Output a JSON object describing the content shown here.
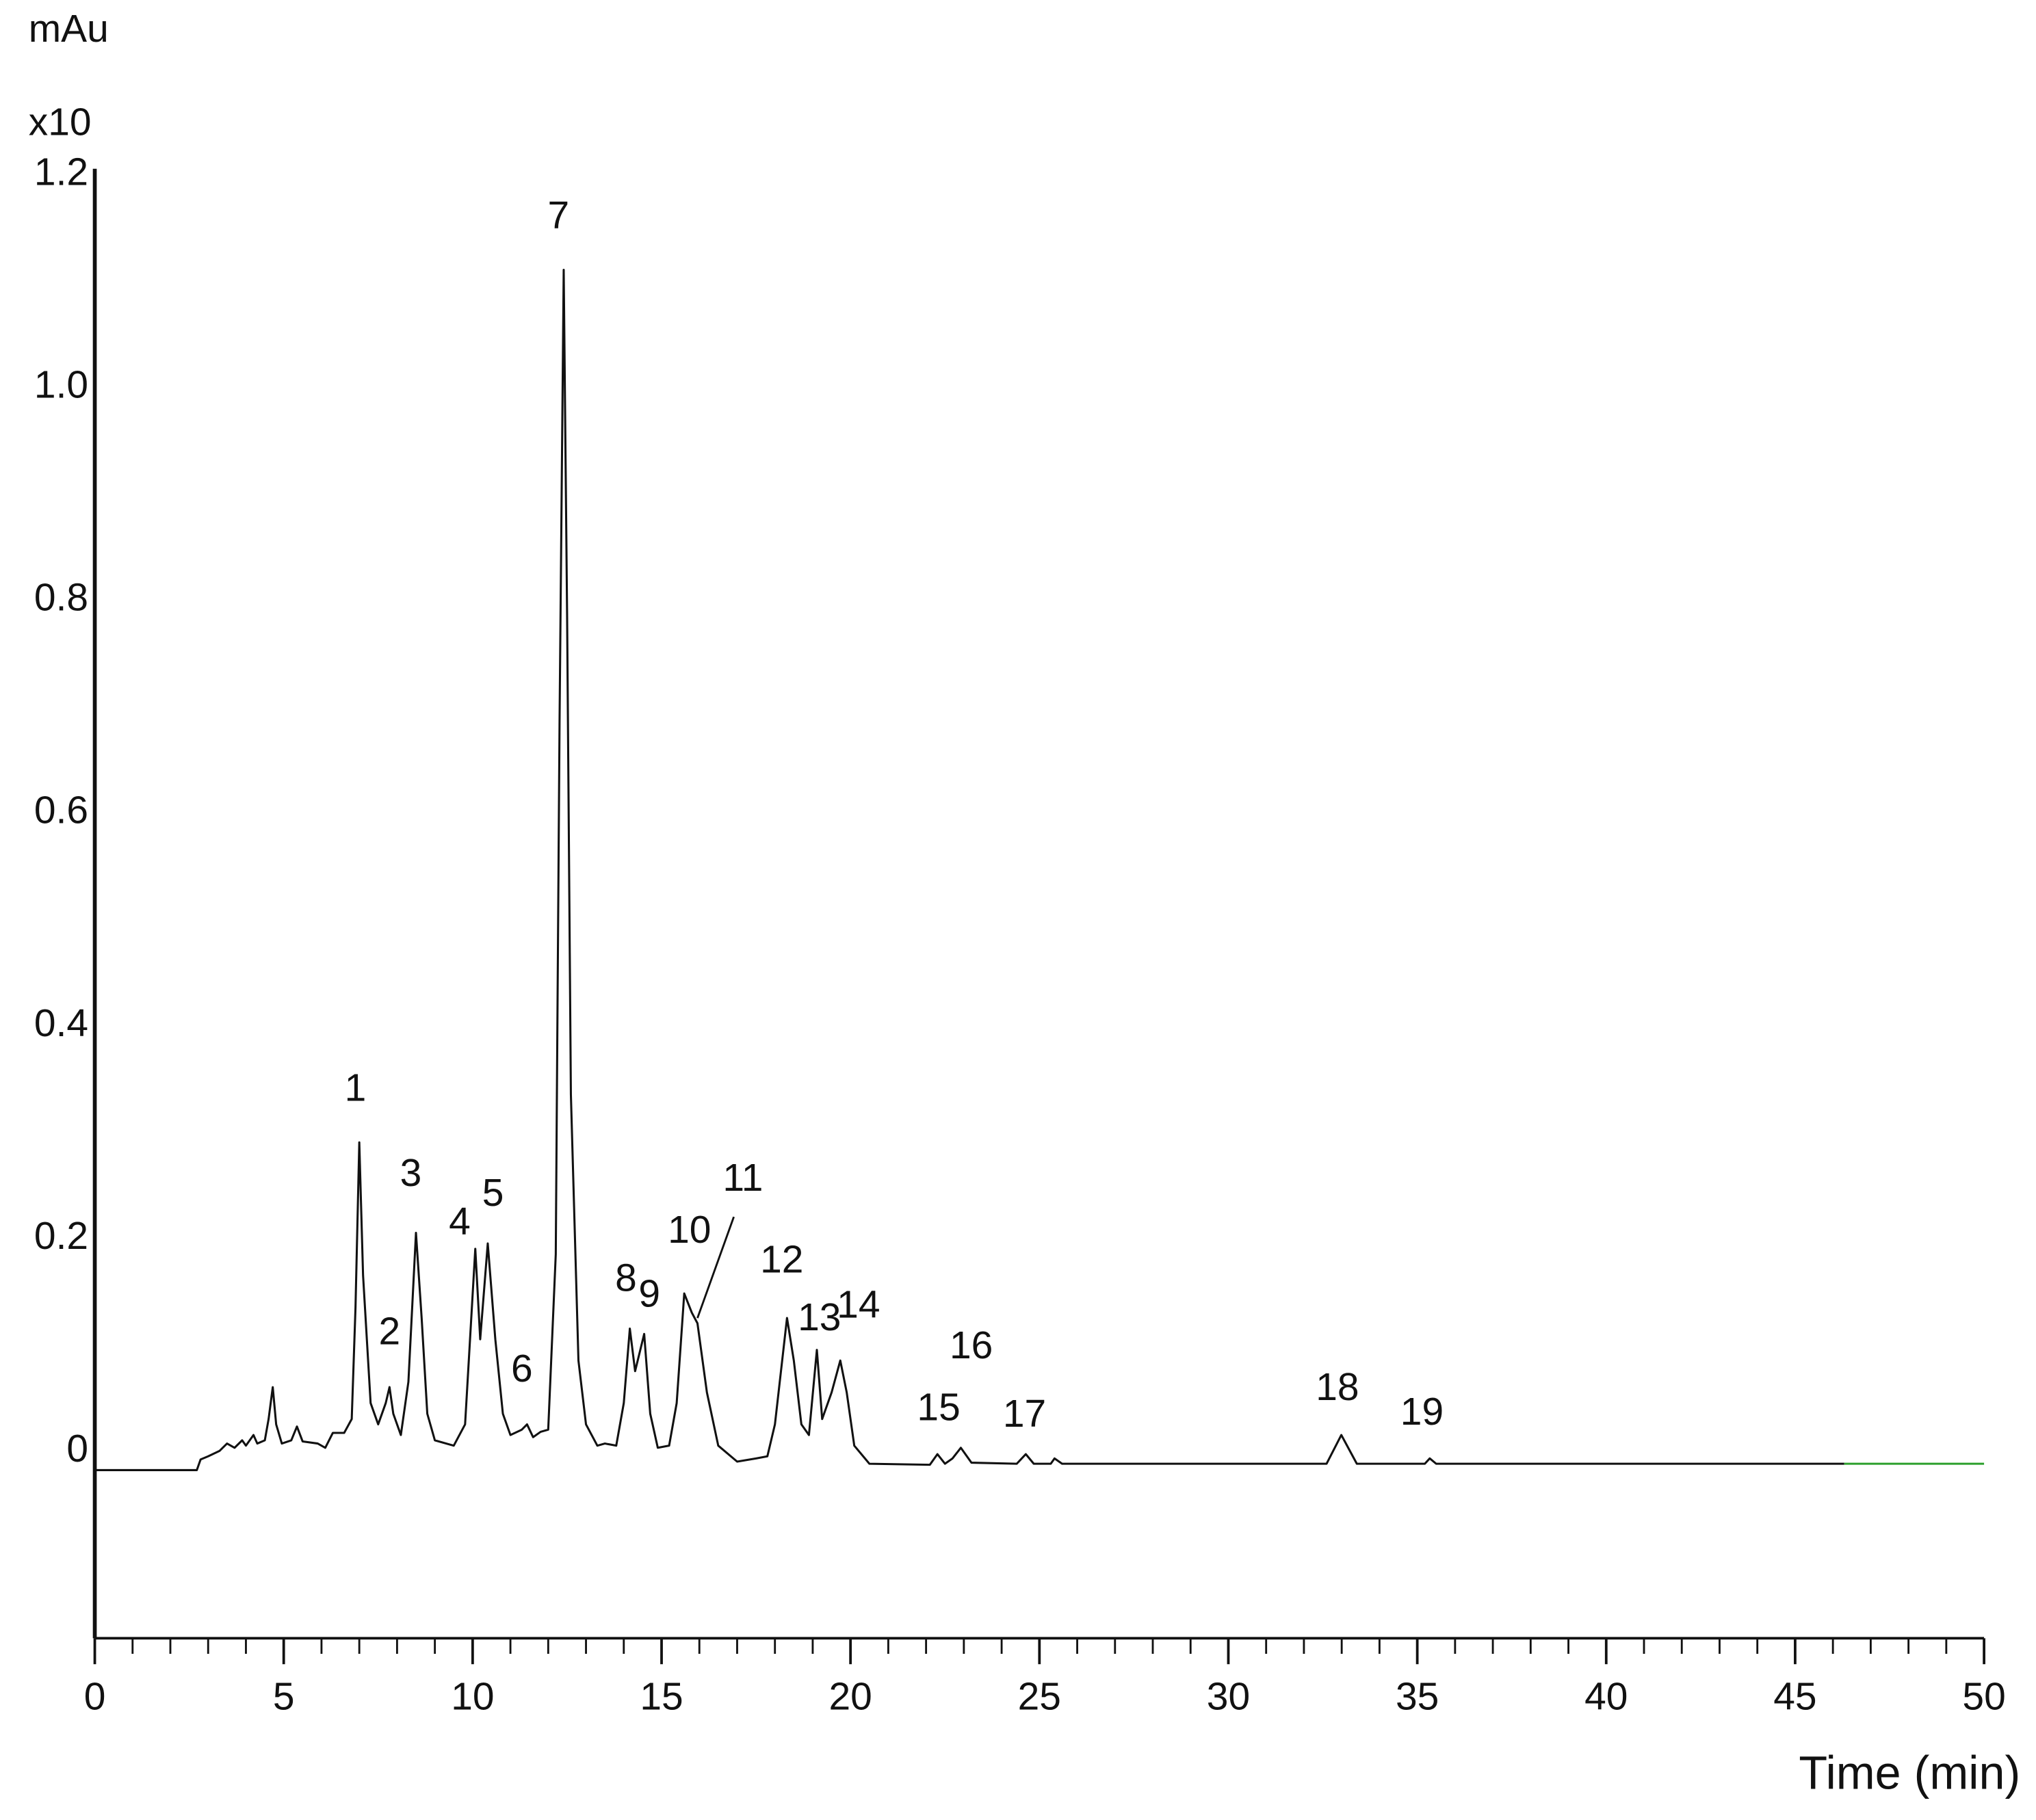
{
  "chart_data": {
    "type": "line",
    "ylabel": "mAu",
    "ylabel_multiplier": "x10",
    "xlabel": "Time (min)",
    "xlim": [
      0,
      50
    ],
    "xticks": [
      0,
      5,
      10,
      15,
      20,
      25,
      30,
      35,
      40,
      45,
      50
    ],
    "ylim": [
      -0.161,
      1.22
    ],
    "yticks": [
      0,
      0.2,
      0.4,
      0.6,
      0.8,
      {
        "value": 1,
        "label": "1.0"
      },
      1.2
    ],
    "grid": false,
    "series": [
      {
        "color": "#111111",
        "x": [
          0,
          2.7,
          2.8,
          3.0,
          3.3,
          3.5,
          3.7,
          3.9,
          4.0,
          4.2,
          4.3,
          4.5,
          4.6,
          4.71,
          4.8,
          4.95,
          5.2,
          5.35,
          5.5,
          5.9,
          6.1,
          6.3,
          6.6,
          6.8,
          6.9,
          7.0,
          7.1,
          7.3,
          7.5,
          7.7,
          7.8,
          7.9,
          8.1,
          8.3,
          8.5,
          8.65,
          8.8,
          9.0,
          9.5,
          9.8,
          10.07,
          10.2,
          10.4,
          10.6,
          10.8,
          11.0,
          11.3,
          11.44,
          11.6,
          11.8,
          12.0,
          12.2,
          12.3,
          12.41,
          12.5,
          12.6,
          12.8,
          13.0,
          13.3,
          13.5,
          13.8,
          14.0,
          14.16,
          14.3,
          14.54,
          14.7,
          14.9,
          15.2,
          15.4,
          15.6,
          15.8,
          15.95,
          16.2,
          16.5,
          17.0,
          17.5,
          17.8,
          18.0,
          18.32,
          18.5,
          18.7,
          18.9,
          19.11,
          19.25,
          19.5,
          19.73,
          19.9,
          20.1,
          20.5,
          22.1,
          22.3,
          22.5,
          22.7,
          22.92,
          23.2,
          24.4,
          24.64,
          24.85,
          25.3,
          25.4,
          25.6,
          32.6,
          32.99,
          33.4,
          35.2,
          35.33,
          35.5,
          46.3
        ],
        "values": [
          -0.003,
          -0.003,
          0.007,
          0.01,
          0.015,
          0.022,
          0.018,
          0.025,
          0.02,
          0.03,
          0.022,
          0.025,
          0.045,
          0.075,
          0.04,
          0.022,
          0.025,
          0.038,
          0.024,
          0.022,
          0.018,
          0.032,
          0.032,
          0.045,
          0.15,
          0.305,
          0.18,
          0.06,
          0.04,
          0.06,
          0.075,
          0.05,
          0.03,
          0.08,
          0.22,
          0.14,
          0.05,
          0.025,
          0.02,
          0.04,
          0.205,
          0.12,
          0.21,
          0.12,
          0.05,
          0.03,
          0.035,
          0.04,
          0.028,
          0.033,
          0.035,
          0.2,
          0.7,
          1.125,
          0.8,
          0.35,
          0.1,
          0.04,
          0.02,
          0.022,
          0.02,
          0.06,
          0.13,
          0.09,
          0.125,
          0.05,
          0.018,
          0.02,
          0.06,
          0.163,
          0.145,
          0.135,
          0.07,
          0.02,
          0.005,
          0.008,
          0.01,
          0.04,
          0.14,
          0.1,
          0.04,
          0.03,
          0.11,
          0.045,
          0.07,
          0.1,
          0.07,
          0.02,
          0.003,
          0.002,
          0.012,
          0.003,
          0.008,
          0.018,
          0.004,
          0.003,
          0.012,
          0.003,
          0.003,
          0.008,
          0.003,
          0.003,
          0.03,
          0.003,
          0.003,
          0.008,
          0.003,
          0.003
        ]
      },
      {
        "color": "#2ca02c",
        "x": [
          46.3,
          50
        ],
        "values": [
          0.003,
          0.003
        ]
      }
    ],
    "peaks": [
      {
        "label": "1",
        "x": 7.0,
        "y": 0.305
      },
      {
        "label": "2",
        "x": 7.8,
        "y": 0.075
      },
      {
        "label": "3",
        "x": 8.5,
        "y": 0.22
      },
      {
        "label": "4",
        "x": 10.07,
        "y": 0.205
      },
      {
        "label": "5",
        "x": 10.4,
        "y": 0.21
      },
      {
        "label": "6",
        "x": 11.44,
        "y": 0.04
      },
      {
        "label": "7",
        "x": 12.41,
        "y": 1.125
      },
      {
        "label": "8",
        "x": 14.16,
        "y": 0.13
      },
      {
        "label": "9",
        "x": 14.54,
        "y": 0.125
      },
      {
        "label": "10",
        "x": 15.6,
        "y": 0.163
      },
      {
        "label": "11",
        "x": 15.95,
        "y": 0.135
      },
      {
        "label": "12",
        "x": 18.32,
        "y": 0.14
      },
      {
        "label": "13",
        "x": 19.11,
        "y": 0.11
      },
      {
        "label": "14",
        "x": 19.73,
        "y": 0.1
      },
      {
        "label": "15",
        "x": 22.3,
        "y": 0.012
      },
      {
        "label": "16",
        "x": 22.92,
        "y": 0.018
      },
      {
        "label": "17",
        "x": 24.64,
        "y": 0.012
      },
      {
        "label": "18",
        "x": 32.99,
        "y": 0.03
      },
      {
        "label": "19",
        "x": 35.33,
        "y": 0.008
      }
    ]
  }
}
